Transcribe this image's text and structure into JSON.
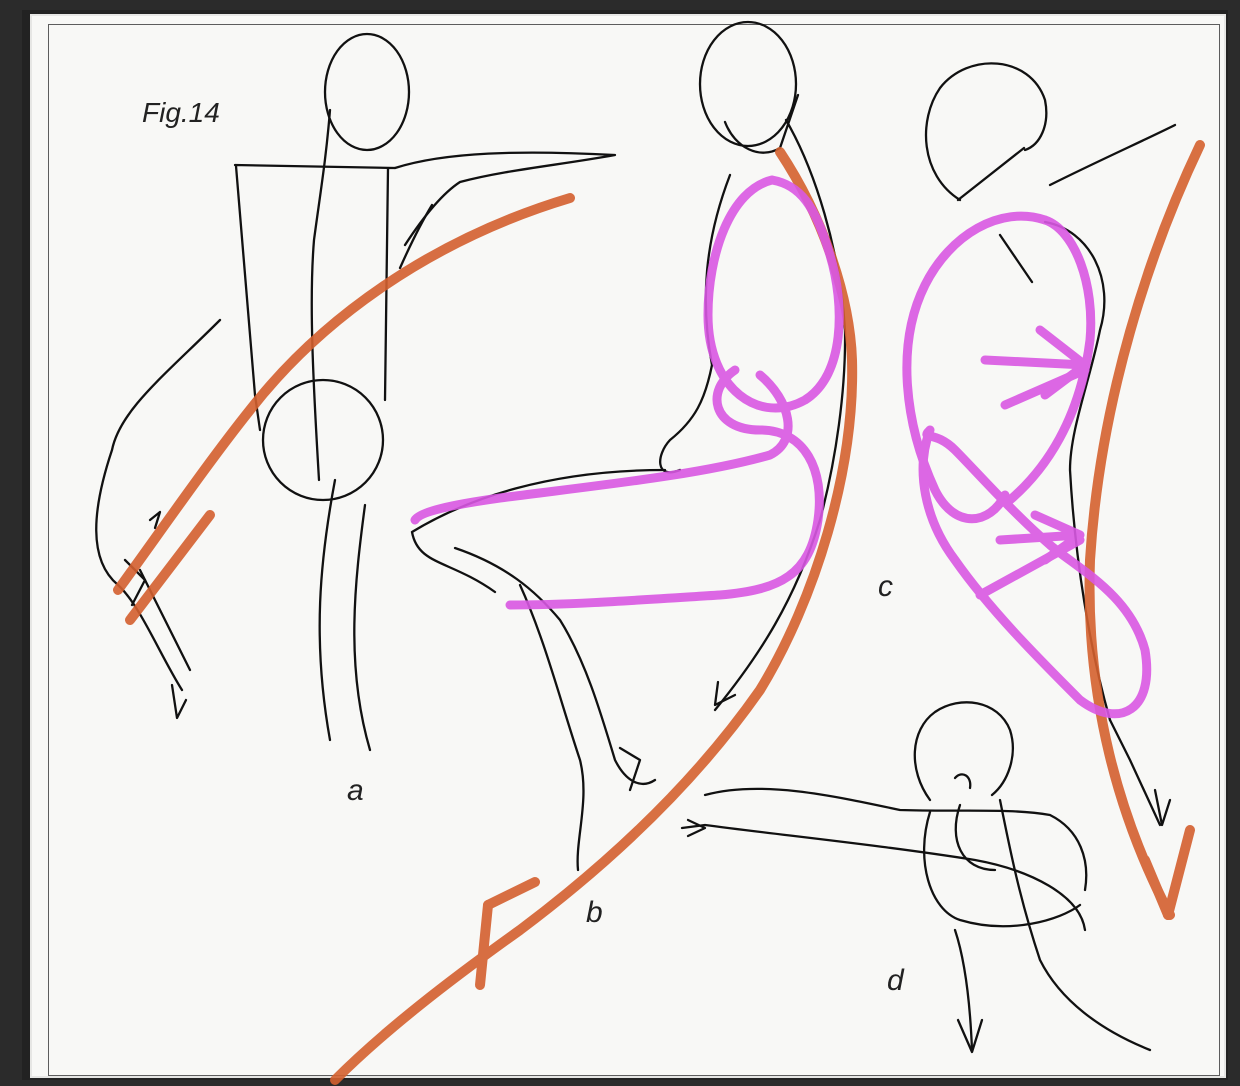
{
  "figure": {
    "title": "Fig.14",
    "labels": {
      "a": "a",
      "b": "b",
      "c": "c",
      "d": "d"
    }
  },
  "colors": {
    "ink": "#111111",
    "orange_overlay": "#d4602f",
    "magenta_overlay": "#d958e3",
    "paper": "#f8f8f6"
  }
}
